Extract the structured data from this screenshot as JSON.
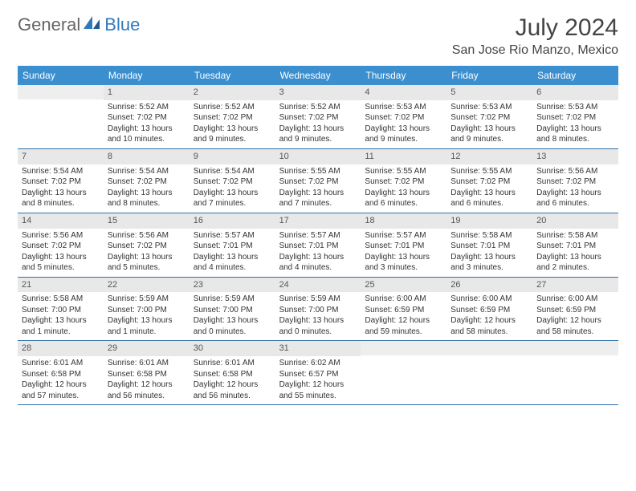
{
  "brand": {
    "general": "General",
    "blue": "Blue"
  },
  "title": "July 2024",
  "location": "San Jose Rio Manzo, Mexico",
  "colors": {
    "header_bg": "#3b8fcf",
    "header_text": "#ffffff",
    "daynum_bg": "#e8e8e8",
    "week_border": "#2f6fa8",
    "brand_blue": "#2f7abf",
    "brand_gray": "#666666"
  },
  "dayHeaders": [
    "Sunday",
    "Monday",
    "Tuesday",
    "Wednesday",
    "Thursday",
    "Friday",
    "Saturday"
  ],
  "weeks": [
    [
      {
        "day": "",
        "sunrise": "",
        "sunset": "",
        "daylight1": "",
        "daylight2": ""
      },
      {
        "day": "1",
        "sunrise": "Sunrise: 5:52 AM",
        "sunset": "Sunset: 7:02 PM",
        "daylight1": "Daylight: 13 hours",
        "daylight2": "and 10 minutes."
      },
      {
        "day": "2",
        "sunrise": "Sunrise: 5:52 AM",
        "sunset": "Sunset: 7:02 PM",
        "daylight1": "Daylight: 13 hours",
        "daylight2": "and 9 minutes."
      },
      {
        "day": "3",
        "sunrise": "Sunrise: 5:52 AM",
        "sunset": "Sunset: 7:02 PM",
        "daylight1": "Daylight: 13 hours",
        "daylight2": "and 9 minutes."
      },
      {
        "day": "4",
        "sunrise": "Sunrise: 5:53 AM",
        "sunset": "Sunset: 7:02 PM",
        "daylight1": "Daylight: 13 hours",
        "daylight2": "and 9 minutes."
      },
      {
        "day": "5",
        "sunrise": "Sunrise: 5:53 AM",
        "sunset": "Sunset: 7:02 PM",
        "daylight1": "Daylight: 13 hours",
        "daylight2": "and 9 minutes."
      },
      {
        "day": "6",
        "sunrise": "Sunrise: 5:53 AM",
        "sunset": "Sunset: 7:02 PM",
        "daylight1": "Daylight: 13 hours",
        "daylight2": "and 8 minutes."
      }
    ],
    [
      {
        "day": "7",
        "sunrise": "Sunrise: 5:54 AM",
        "sunset": "Sunset: 7:02 PM",
        "daylight1": "Daylight: 13 hours",
        "daylight2": "and 8 minutes."
      },
      {
        "day": "8",
        "sunrise": "Sunrise: 5:54 AM",
        "sunset": "Sunset: 7:02 PM",
        "daylight1": "Daylight: 13 hours",
        "daylight2": "and 8 minutes."
      },
      {
        "day": "9",
        "sunrise": "Sunrise: 5:54 AM",
        "sunset": "Sunset: 7:02 PM",
        "daylight1": "Daylight: 13 hours",
        "daylight2": "and 7 minutes."
      },
      {
        "day": "10",
        "sunrise": "Sunrise: 5:55 AM",
        "sunset": "Sunset: 7:02 PM",
        "daylight1": "Daylight: 13 hours",
        "daylight2": "and 7 minutes."
      },
      {
        "day": "11",
        "sunrise": "Sunrise: 5:55 AM",
        "sunset": "Sunset: 7:02 PM",
        "daylight1": "Daylight: 13 hours",
        "daylight2": "and 6 minutes."
      },
      {
        "day": "12",
        "sunrise": "Sunrise: 5:55 AM",
        "sunset": "Sunset: 7:02 PM",
        "daylight1": "Daylight: 13 hours",
        "daylight2": "and 6 minutes."
      },
      {
        "day": "13",
        "sunrise": "Sunrise: 5:56 AM",
        "sunset": "Sunset: 7:02 PM",
        "daylight1": "Daylight: 13 hours",
        "daylight2": "and 6 minutes."
      }
    ],
    [
      {
        "day": "14",
        "sunrise": "Sunrise: 5:56 AM",
        "sunset": "Sunset: 7:02 PM",
        "daylight1": "Daylight: 13 hours",
        "daylight2": "and 5 minutes."
      },
      {
        "day": "15",
        "sunrise": "Sunrise: 5:56 AM",
        "sunset": "Sunset: 7:02 PM",
        "daylight1": "Daylight: 13 hours",
        "daylight2": "and 5 minutes."
      },
      {
        "day": "16",
        "sunrise": "Sunrise: 5:57 AM",
        "sunset": "Sunset: 7:01 PM",
        "daylight1": "Daylight: 13 hours",
        "daylight2": "and 4 minutes."
      },
      {
        "day": "17",
        "sunrise": "Sunrise: 5:57 AM",
        "sunset": "Sunset: 7:01 PM",
        "daylight1": "Daylight: 13 hours",
        "daylight2": "and 4 minutes."
      },
      {
        "day": "18",
        "sunrise": "Sunrise: 5:57 AM",
        "sunset": "Sunset: 7:01 PM",
        "daylight1": "Daylight: 13 hours",
        "daylight2": "and 3 minutes."
      },
      {
        "day": "19",
        "sunrise": "Sunrise: 5:58 AM",
        "sunset": "Sunset: 7:01 PM",
        "daylight1": "Daylight: 13 hours",
        "daylight2": "and 3 minutes."
      },
      {
        "day": "20",
        "sunrise": "Sunrise: 5:58 AM",
        "sunset": "Sunset: 7:01 PM",
        "daylight1": "Daylight: 13 hours",
        "daylight2": "and 2 minutes."
      }
    ],
    [
      {
        "day": "21",
        "sunrise": "Sunrise: 5:58 AM",
        "sunset": "Sunset: 7:00 PM",
        "daylight1": "Daylight: 13 hours",
        "daylight2": "and 1 minute."
      },
      {
        "day": "22",
        "sunrise": "Sunrise: 5:59 AM",
        "sunset": "Sunset: 7:00 PM",
        "daylight1": "Daylight: 13 hours",
        "daylight2": "and 1 minute."
      },
      {
        "day": "23",
        "sunrise": "Sunrise: 5:59 AM",
        "sunset": "Sunset: 7:00 PM",
        "daylight1": "Daylight: 13 hours",
        "daylight2": "and 0 minutes."
      },
      {
        "day": "24",
        "sunrise": "Sunrise: 5:59 AM",
        "sunset": "Sunset: 7:00 PM",
        "daylight1": "Daylight: 13 hours",
        "daylight2": "and 0 minutes."
      },
      {
        "day": "25",
        "sunrise": "Sunrise: 6:00 AM",
        "sunset": "Sunset: 6:59 PM",
        "daylight1": "Daylight: 12 hours",
        "daylight2": "and 59 minutes."
      },
      {
        "day": "26",
        "sunrise": "Sunrise: 6:00 AM",
        "sunset": "Sunset: 6:59 PM",
        "daylight1": "Daylight: 12 hours",
        "daylight2": "and 58 minutes."
      },
      {
        "day": "27",
        "sunrise": "Sunrise: 6:00 AM",
        "sunset": "Sunset: 6:59 PM",
        "daylight1": "Daylight: 12 hours",
        "daylight2": "and 58 minutes."
      }
    ],
    [
      {
        "day": "28",
        "sunrise": "Sunrise: 6:01 AM",
        "sunset": "Sunset: 6:58 PM",
        "daylight1": "Daylight: 12 hours",
        "daylight2": "and 57 minutes."
      },
      {
        "day": "29",
        "sunrise": "Sunrise: 6:01 AM",
        "sunset": "Sunset: 6:58 PM",
        "daylight1": "Daylight: 12 hours",
        "daylight2": "and 56 minutes."
      },
      {
        "day": "30",
        "sunrise": "Sunrise: 6:01 AM",
        "sunset": "Sunset: 6:58 PM",
        "daylight1": "Daylight: 12 hours",
        "daylight2": "and 56 minutes."
      },
      {
        "day": "31",
        "sunrise": "Sunrise: 6:02 AM",
        "sunset": "Sunset: 6:57 PM",
        "daylight1": "Daylight: 12 hours",
        "daylight2": "and 55 minutes."
      },
      {
        "day": "",
        "sunrise": "",
        "sunset": "",
        "daylight1": "",
        "daylight2": ""
      },
      {
        "day": "",
        "sunrise": "",
        "sunset": "",
        "daylight1": "",
        "daylight2": ""
      },
      {
        "day": "",
        "sunrise": "",
        "sunset": "",
        "daylight1": "",
        "daylight2": ""
      }
    ]
  ]
}
